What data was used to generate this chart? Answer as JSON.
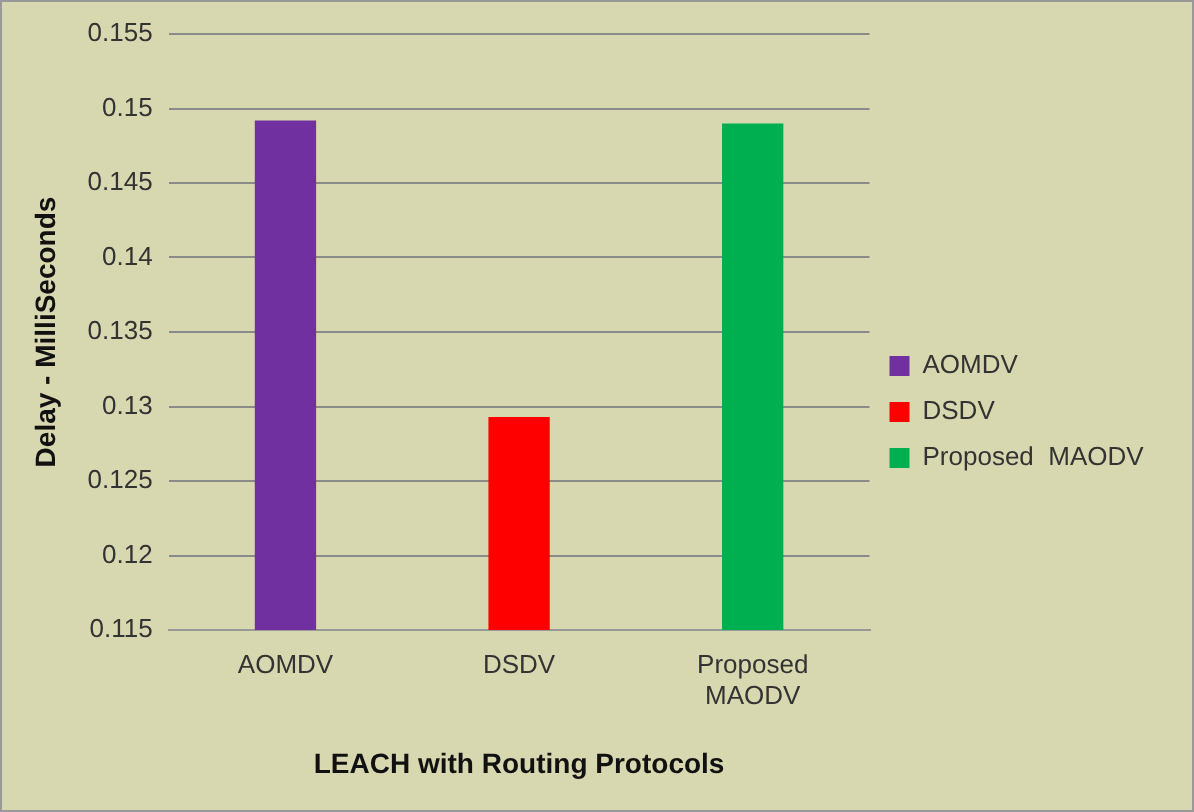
{
  "chart_data": {
    "type": "bar",
    "xlabel": "LEACH with Routing Protocols",
    "ylabel": "Delay - MilliSeconds",
    "categories": [
      "AOMDV",
      "DSDV",
      "Proposed MAODV"
    ],
    "series": [
      {
        "name": "AOMDV",
        "color": "#7030a0",
        "values": [
          0.1492,
          null,
          null
        ]
      },
      {
        "name": "DSDV",
        "color": "#ff0000",
        "values": [
          null,
          0.1293,
          null
        ]
      },
      {
        "name": "Proposed  MAODV",
        "color": "#00b050",
        "values": [
          null,
          null,
          0.149
        ]
      }
    ],
    "ylim": [
      0.115,
      0.155
    ],
    "yticks": [
      0.115,
      0.12,
      0.125,
      0.13,
      0.135,
      0.14,
      0.145,
      0.15,
      0.155
    ],
    "grid": "y",
    "legend": "right"
  }
}
